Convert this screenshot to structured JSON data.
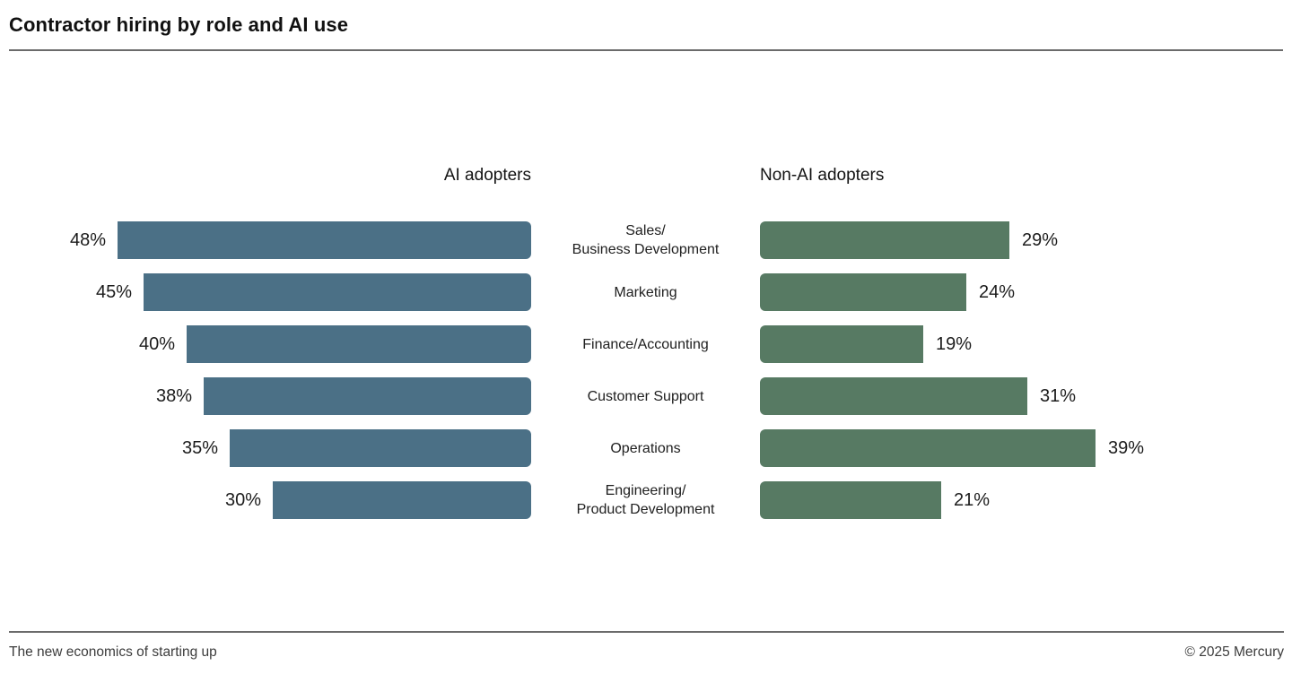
{
  "header": {
    "title": "Contractor hiring by role and AI use"
  },
  "chart_data": {
    "type": "bar",
    "orientation": "horizontal",
    "title": "Contractor hiring by role and AI use",
    "value_unit": "%",
    "xlim": [
      0,
      48
    ],
    "grid": false,
    "categories": [
      "Sales/Business Development",
      "Marketing",
      "Finance/Accounting",
      "Customer Support",
      "Operations",
      "Engineering/Product Development"
    ],
    "categories_display": [
      "Sales/\nBusiness Development",
      "Marketing",
      "Finance/Accounting",
      "Customer Support",
      "Operations",
      "Engineering/\nProduct Development"
    ],
    "series": [
      {
        "name": "AI adopters",
        "color": "#4b7086",
        "align": "right",
        "values": [
          48,
          45,
          40,
          38,
          35,
          30
        ],
        "display": [
          "48%",
          "45%",
          "40%",
          "38%",
          "35%",
          "30%"
        ]
      },
      {
        "name": "Non-AI adopters",
        "color": "#577a63",
        "align": "left",
        "values": [
          29,
          24,
          19,
          31,
          39,
          21
        ],
        "display": [
          "29%",
          "24%",
          "19%",
          "31%",
          "39%",
          "21%"
        ]
      }
    ],
    "legend_position": "column-headers"
  },
  "footer": {
    "left_text": "The new economics of starting up",
    "right_text": "© 2025 Mercury"
  }
}
